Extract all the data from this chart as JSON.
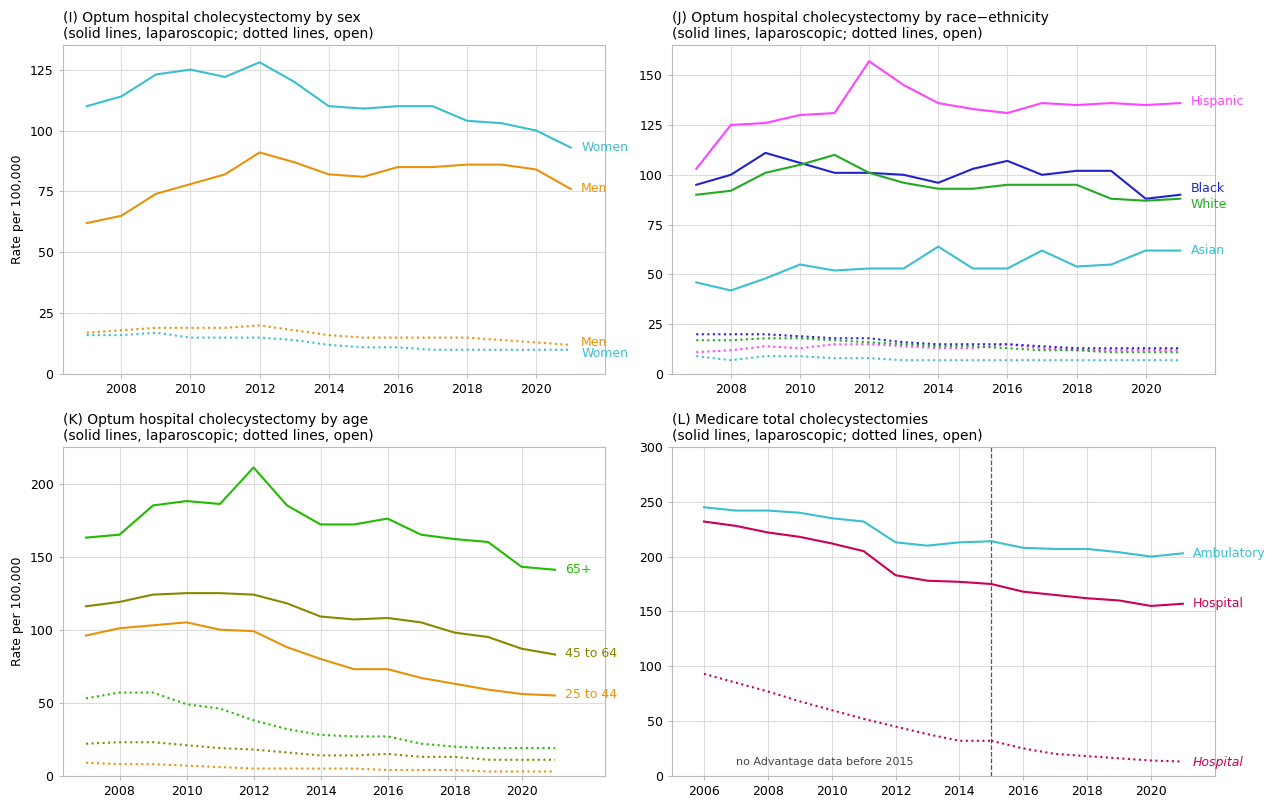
{
  "panel_I": {
    "title": "(I) Optum hospital cholecystectomy by sex\n(solid lines, laparoscopic; dotted lines, open)",
    "years": [
      2007,
      2008,
      2009,
      2010,
      2011,
      2012,
      2013,
      2014,
      2015,
      2016,
      2017,
      2018,
      2019,
      2020,
      2021
    ],
    "women_lap": [
      110,
      114,
      123,
      125,
      122,
      128,
      120,
      110,
      109,
      110,
      110,
      104,
      103,
      100,
      93
    ],
    "men_lap": [
      62,
      65,
      74,
      78,
      82,
      91,
      87,
      82,
      81,
      85,
      85,
      86,
      86,
      84,
      76
    ],
    "women_open": [
      16,
      16,
      17,
      15,
      15,
      15,
      14,
      12,
      11,
      11,
      10,
      10,
      10,
      10,
      10
    ],
    "men_open": [
      17,
      18,
      19,
      19,
      19,
      20,
      18,
      16,
      15,
      15,
      15,
      15,
      14,
      13,
      12
    ],
    "ylim": [
      0,
      135
    ],
    "yticks": [
      0,
      25,
      50,
      75,
      100,
      125
    ],
    "ylabel": "Rate per 100,000",
    "colors": {
      "women": "#3ABFCF",
      "men": "#E8920A"
    },
    "xlim": [
      2006.3,
      2022.0
    ]
  },
  "panel_J": {
    "title": "(J) Optum hospital cholecystectomy by race−ethnicity\n(solid lines, laparoscopic; dotted lines, open)",
    "years": [
      2007,
      2008,
      2009,
      2010,
      2011,
      2012,
      2013,
      2014,
      2015,
      2016,
      2017,
      2018,
      2019,
      2020,
      2021
    ],
    "hispanic_lap": [
      103,
      125,
      126,
      130,
      131,
      157,
      145,
      136,
      133,
      131,
      136,
      135,
      136,
      135,
      136
    ],
    "black_lap": [
      95,
      100,
      111,
      106,
      101,
      101,
      100,
      96,
      103,
      107,
      100,
      102,
      102,
      88,
      90
    ],
    "white_lap": [
      90,
      92,
      101,
      105,
      110,
      101,
      96,
      93,
      93,
      95,
      95,
      95,
      88,
      87,
      88
    ],
    "asian_lap": [
      46,
      42,
      48,
      55,
      52,
      53,
      53,
      64,
      53,
      53,
      62,
      54,
      55,
      62,
      62
    ],
    "hispanic_open": [
      11,
      12,
      14,
      13,
      15,
      15,
      14,
      13,
      13,
      15,
      13,
      12,
      12,
      12,
      12
    ],
    "black_open": [
      20,
      20,
      20,
      19,
      18,
      18,
      16,
      15,
      15,
      15,
      14,
      13,
      13,
      13,
      13
    ],
    "white_open": [
      17,
      17,
      18,
      18,
      17,
      16,
      15,
      14,
      14,
      13,
      12,
      12,
      11,
      11,
      11
    ],
    "asian_open": [
      9,
      7,
      9,
      9,
      8,
      8,
      7,
      7,
      7,
      7,
      7,
      7,
      7,
      7,
      7
    ],
    "ylim": [
      0,
      165
    ],
    "yticks": [
      0,
      25,
      50,
      75,
      100,
      125,
      150
    ],
    "colors": {
      "hispanic": "#FF44FF",
      "black": "#2222CC",
      "white": "#22AA22",
      "asian": "#3ABFCF"
    },
    "xlim": [
      2006.3,
      2022.0
    ]
  },
  "panel_K": {
    "title": "(K) Optum hospital cholecystectomy by age\n(solid lines, laparoscopic; dotted lines, open)",
    "years": [
      2007,
      2008,
      2009,
      2010,
      2011,
      2012,
      2013,
      2014,
      2015,
      2016,
      2017,
      2018,
      2019,
      2020,
      2021
    ],
    "age65_lap": [
      163,
      165,
      185,
      188,
      186,
      211,
      185,
      172,
      172,
      176,
      165,
      162,
      160,
      143,
      141
    ],
    "age45_lap": [
      116,
      119,
      124,
      125,
      125,
      124,
      118,
      109,
      107,
      108,
      105,
      98,
      95,
      87,
      83
    ],
    "age25_lap": [
      96,
      101,
      103,
      105,
      100,
      99,
      88,
      80,
      73,
      73,
      67,
      63,
      59,
      56,
      55
    ],
    "age65_open": [
      53,
      57,
      57,
      49,
      46,
      38,
      32,
      28,
      27,
      27,
      22,
      20,
      19,
      19,
      19
    ],
    "age45_open": [
      22,
      23,
      23,
      21,
      19,
      18,
      16,
      14,
      14,
      15,
      13,
      13,
      11,
      11,
      11
    ],
    "age25_open": [
      9,
      8,
      8,
      7,
      6,
      5,
      5,
      5,
      5,
      4,
      4,
      4,
      3,
      3,
      3
    ],
    "ylim": [
      0,
      225
    ],
    "yticks": [
      0,
      50,
      100,
      150,
      200
    ],
    "ylabel": "Rate per 100,000",
    "colors": {
      "age65": "#22BB00",
      "age45": "#888800",
      "age25": "#E8920A"
    },
    "xlim": [
      2006.3,
      2022.5
    ]
  },
  "panel_L": {
    "title": "(L) Medicare total cholecystectomies\n(solid lines, laparoscopic; dotted lines, open)",
    "years_main": [
      2006,
      2007,
      2008,
      2009,
      2010,
      2011,
      2012,
      2013,
      2014,
      2015,
      2016,
      2017,
      2018,
      2019,
      2020,
      2021
    ],
    "ambulatory_lap": [
      245,
      242,
      242,
      240,
      235,
      232,
      213,
      210,
      213,
      214,
      208,
      207,
      207,
      204,
      200,
      203
    ],
    "hospital_lap": [
      232,
      228,
      222,
      218,
      212,
      205,
      183,
      178,
      177,
      175,
      168,
      165,
      162,
      160,
      155,
      157
    ],
    "years_hosp_open_post": [
      2015,
      2016,
      2017,
      2018,
      2019,
      2020,
      2021
    ],
    "hospital_open_post": [
      32,
      25,
      20,
      18,
      16,
      14,
      13
    ],
    "years_dotted_pre": [
      2006,
      2007,
      2008,
      2009,
      2010,
      2011,
      2012,
      2013,
      2014,
      2015
    ],
    "hospital_open_pre": [
      93,
      85,
      77,
      68,
      60,
      52,
      45,
      38,
      32,
      32
    ],
    "vline_x": 2015,
    "ylim": [
      0,
      300
    ],
    "yticks": [
      0,
      50,
      100,
      150,
      200,
      250,
      300
    ],
    "colors": {
      "ambulatory": "#3ABFCF",
      "hospital": "#CC0055"
    },
    "annotation": "no Advantage data before 2015",
    "xlim": [
      2005.0,
      2022.0
    ]
  },
  "bg_color": "#FFFFFF",
  "grid_color": "#DDDDDD",
  "title_fontsize": 10,
  "label_fontsize": 9,
  "tick_fontsize": 9
}
